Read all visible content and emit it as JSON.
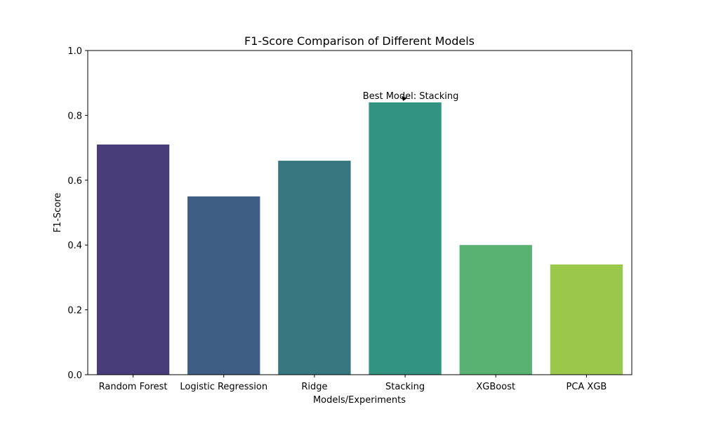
{
  "chart_data": {
    "type": "bar",
    "title": "F1-Score Comparison of Different Models",
    "xlabel": "Models/Experiments",
    "ylabel": "F1-Score",
    "categories": [
      "Random Forest",
      "Logistic Regression",
      "Ridge",
      "Stacking",
      "XGBoost",
      "PCA XGB"
    ],
    "values": [
      0.71,
      0.55,
      0.66,
      0.84,
      0.4,
      0.34
    ],
    "colors": [
      "#483d78",
      "#3f5e83",
      "#35767f",
      "#329380",
      "#59b172",
      "#9ac84b"
    ],
    "ylim": [
      0,
      1.0
    ],
    "yticks": [
      "0.0",
      "0.2",
      "0.4",
      "0.6",
      "0.8",
      "1.0"
    ],
    "grid": false,
    "annotation": {
      "text": "Best Model: Stacking",
      "target_category": "Stacking"
    }
  }
}
